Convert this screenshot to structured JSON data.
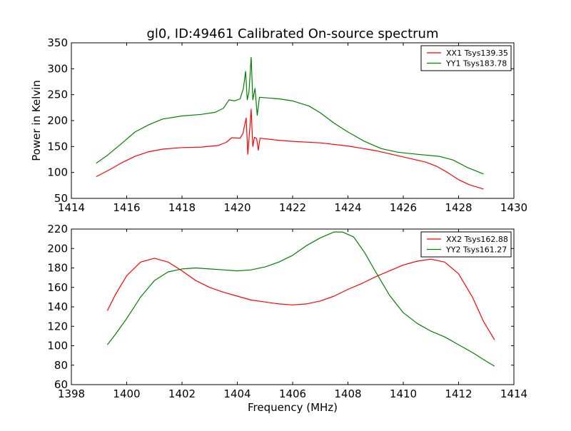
{
  "chart_data": [
    {
      "type": "line",
      "title": "gl0, ID:49461 Calibrated On-source spectrum",
      "xlabel": "",
      "ylabel": "Power in Kelvin",
      "xlim": [
        1414,
        1430
      ],
      "ylim": [
        50,
        350
      ],
      "xticks": [
        1414,
        1416,
        1418,
        1420,
        1422,
        1424,
        1426,
        1428,
        1430
      ],
      "yticks": [
        50,
        100,
        150,
        200,
        250,
        300,
        350
      ],
      "legend_position": "top-right",
      "grid": false,
      "series": [
        {
          "name": "XX1 Tsys139.35",
          "color": "#ff0000",
          "points": [
            [
              1414.9,
              92
            ],
            [
              1415.3,
              103
            ],
            [
              1415.8,
              118
            ],
            [
              1416.3,
              131
            ],
            [
              1416.8,
              140
            ],
            [
              1417.3,
              145
            ],
            [
              1418.0,
              148
            ],
            [
              1418.7,
              149
            ],
            [
              1419.3,
              152
            ],
            [
              1419.6,
              158
            ],
            [
              1419.8,
              167
            ],
            [
              1420.1,
              166
            ],
            [
              1420.2,
              175
            ],
            [
              1420.28,
              195
            ],
            [
              1420.32,
              205
            ],
            [
              1420.38,
              135
            ],
            [
              1420.43,
              170
            ],
            [
              1420.5,
              222
            ],
            [
              1420.56,
              150
            ],
            [
              1420.62,
              168
            ],
            [
              1420.7,
              165
            ],
            [
              1420.76,
              143
            ],
            [
              1420.82,
              166
            ],
            [
              1421.5,
              162
            ],
            [
              1422.0,
              160
            ],
            [
              1423.0,
              157
            ],
            [
              1424.0,
              151
            ],
            [
              1425.0,
              142
            ],
            [
              1426.0,
              130
            ],
            [
              1426.8,
              120
            ],
            [
              1427.2,
              112
            ],
            [
              1427.6,
              100
            ],
            [
              1428.0,
              86
            ],
            [
              1428.4,
              76
            ],
            [
              1428.9,
              68
            ]
          ]
        },
        {
          "name": "YY1 Tsys183.78",
          "color": "#008000",
          "points": [
            [
              1414.9,
              118
            ],
            [
              1415.3,
              133
            ],
            [
              1415.8,
              155
            ],
            [
              1416.3,
              178
            ],
            [
              1416.8,
              192
            ],
            [
              1417.3,
              203
            ],
            [
              1418.0,
              209
            ],
            [
              1418.7,
              212
            ],
            [
              1419.2,
              216
            ],
            [
              1419.5,
              224
            ],
            [
              1419.7,
              240
            ],
            [
              1419.9,
              238
            ],
            [
              1420.1,
              242
            ],
            [
              1420.22,
              262
            ],
            [
              1420.3,
              295
            ],
            [
              1420.36,
              240
            ],
            [
              1420.42,
              255
            ],
            [
              1420.5,
              322
            ],
            [
              1420.56,
              240
            ],
            [
              1420.64,
              262
            ],
            [
              1420.72,
              210
            ],
            [
              1420.8,
              245
            ],
            [
              1421.5,
              242
            ],
            [
              1422.0,
              238
            ],
            [
              1422.6,
              228
            ],
            [
              1423.0,
              215
            ],
            [
              1423.5,
              195
            ],
            [
              1424.0,
              178
            ],
            [
              1424.6,
              160
            ],
            [
              1425.2,
              146
            ],
            [
              1425.8,
              139
            ],
            [
              1426.5,
              135
            ],
            [
              1427.3,
              131
            ],
            [
              1427.8,
              124
            ],
            [
              1428.3,
              110
            ],
            [
              1428.9,
              97
            ]
          ]
        }
      ]
    },
    {
      "type": "line",
      "title": "",
      "xlabel": "Frequency (MHz)",
      "ylabel": "",
      "xlim": [
        1398,
        1414
      ],
      "ylim": [
        60,
        220
      ],
      "xticks": [
        1398,
        1400,
        1402,
        1404,
        1406,
        1408,
        1410,
        1412,
        1414
      ],
      "yticks": [
        60,
        80,
        100,
        120,
        140,
        160,
        180,
        200,
        220
      ],
      "legend_position": "top-right",
      "grid": false,
      "series": [
        {
          "name": "XX2 Tsys162.88",
          "color": "#ff0000",
          "points": [
            [
              1399.3,
              136
            ],
            [
              1399.6,
              153
            ],
            [
              1400.0,
              172
            ],
            [
              1400.5,
              186
            ],
            [
              1401.0,
              190
            ],
            [
              1401.5,
              186
            ],
            [
              1402.0,
              177
            ],
            [
              1402.5,
              167
            ],
            [
              1403.0,
              160
            ],
            [
              1403.5,
              155
            ],
            [
              1404.0,
              151
            ],
            [
              1404.5,
              147
            ],
            [
              1405.0,
              145
            ],
            [
              1405.5,
              143
            ],
            [
              1406.0,
              142
            ],
            [
              1406.5,
              143
            ],
            [
              1407.0,
              146
            ],
            [
              1407.5,
              151
            ],
            [
              1408.0,
              158
            ],
            [
              1408.5,
              164
            ],
            [
              1409.0,
              171
            ],
            [
              1409.5,
              177
            ],
            [
              1410.0,
              183
            ],
            [
              1410.5,
              187
            ],
            [
              1411.0,
              189
            ],
            [
              1411.5,
              186
            ],
            [
              1412.0,
              174
            ],
            [
              1412.5,
              150
            ],
            [
              1412.9,
              125
            ],
            [
              1413.3,
              106
            ]
          ]
        },
        {
          "name": "YY2 Tsys161.27",
          "color": "#008000",
          "points": [
            [
              1399.3,
              101
            ],
            [
              1399.6,
              112
            ],
            [
              1400.0,
              128
            ],
            [
              1400.5,
              150
            ],
            [
              1401.0,
              167
            ],
            [
              1401.5,
              176
            ],
            [
              1402.0,
              179
            ],
            [
              1402.5,
              180
            ],
            [
              1403.0,
              179
            ],
            [
              1403.5,
              178
            ],
            [
              1404.0,
              177
            ],
            [
              1404.5,
              178
            ],
            [
              1405.0,
              181
            ],
            [
              1405.5,
              186
            ],
            [
              1406.0,
              193
            ],
            [
              1406.5,
              203
            ],
            [
              1407.0,
              211
            ],
            [
              1407.5,
              217
            ],
            [
              1407.8,
              217
            ],
            [
              1408.2,
              212
            ],
            [
              1408.6,
              196
            ],
            [
              1409.0,
              176
            ],
            [
              1409.5,
              152
            ],
            [
              1410.0,
              134
            ],
            [
              1410.5,
              123
            ],
            [
              1411.0,
              115
            ],
            [
              1411.5,
              109
            ],
            [
              1412.0,
              101
            ],
            [
              1412.5,
              93
            ],
            [
              1413.0,
              84
            ],
            [
              1413.3,
              79
            ]
          ]
        }
      ]
    }
  ]
}
